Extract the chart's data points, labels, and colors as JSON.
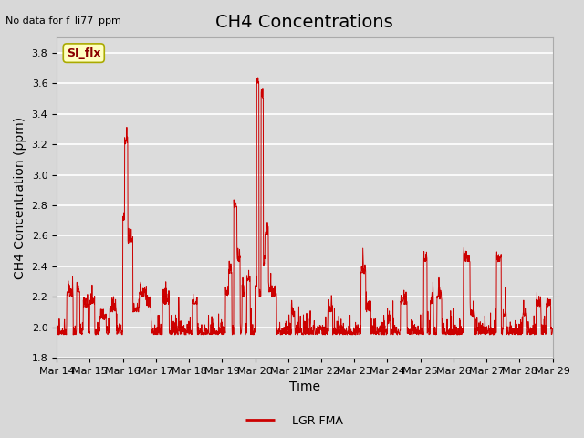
{
  "title": "CH4 Concentrations",
  "ylabel": "CH4 Concentration (ppm)",
  "xlabel": "Time",
  "top_left_text": "No data for f_li77_ppm",
  "legend_label": "LGR FMA",
  "si_flx_label": "SI_flx",
  "ylim": [
    1.8,
    3.9
  ],
  "background_color": "#d8d8d8",
  "plot_bg_color": "#dcdcdc",
  "line_color": "#cc0000",
  "x_tick_labels": [
    "Mar 14",
    "Mar 15",
    "Mar 16",
    "Mar 17",
    "Mar 18",
    "Mar 19",
    "Mar 20",
    "Mar 21",
    "Mar 22",
    "Mar 23",
    "Mar 24",
    "Mar 25",
    "Mar 26",
    "Mar 27",
    "Mar 28",
    "Mar 29"
  ],
  "y_ticks": [
    1.8,
    2.0,
    2.2,
    2.4,
    2.6,
    2.8,
    3.0,
    3.2,
    3.4,
    3.6,
    3.8
  ],
  "title_fontsize": 14,
  "label_fontsize": 10,
  "tick_fontsize": 8,
  "n_days": 15
}
